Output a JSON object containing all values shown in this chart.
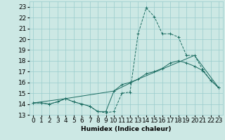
{
  "xlabel": "Humidex (Indice chaleur)",
  "bg_color": "#cce8e4",
  "grid_color": "#99cccc",
  "line_color": "#1a6b60",
  "xlim": [
    -0.5,
    23.5
  ],
  "ylim": [
    13,
    23.5
  ],
  "xticks": [
    0,
    1,
    2,
    3,
    4,
    5,
    6,
    7,
    8,
    9,
    10,
    11,
    12,
    13,
    14,
    15,
    16,
    17,
    18,
    19,
    20,
    21,
    22,
    23
  ],
  "yticks": [
    13,
    14,
    15,
    16,
    17,
    18,
    19,
    20,
    21,
    22,
    23
  ],
  "line1_x": [
    0,
    1,
    2,
    3,
    4,
    5,
    6,
    7,
    8,
    9,
    10,
    11,
    12,
    13,
    14,
    15,
    16,
    17,
    18,
    19,
    20,
    21,
    22,
    23
  ],
  "line1_y": [
    14.1,
    14.1,
    14.0,
    14.2,
    14.5,
    14.2,
    14.0,
    13.8,
    13.3,
    13.2,
    13.3,
    15.0,
    15.1,
    20.5,
    22.9,
    22.1,
    20.5,
    20.5,
    20.2,
    18.5,
    18.5,
    17.2,
    16.2,
    15.5
  ],
  "line2_x": [
    0,
    1,
    2,
    3,
    4,
    5,
    6,
    7,
    8,
    9,
    10,
    11,
    12,
    13,
    14,
    15,
    16,
    17,
    18,
    19,
    20,
    21,
    22,
    23
  ],
  "line2_y": [
    14.1,
    14.1,
    14.0,
    14.2,
    14.5,
    14.2,
    14.0,
    13.8,
    13.3,
    13.3,
    15.2,
    15.8,
    16.0,
    16.3,
    16.8,
    17.0,
    17.3,
    17.8,
    18.0,
    17.8,
    17.5,
    17.1,
    16.2,
    15.5
  ],
  "line3_x": [
    0,
    4,
    10,
    13,
    20,
    23
  ],
  "line3_y": [
    14.1,
    14.5,
    15.2,
    16.3,
    18.5,
    15.5
  ],
  "font_size": 6.5
}
